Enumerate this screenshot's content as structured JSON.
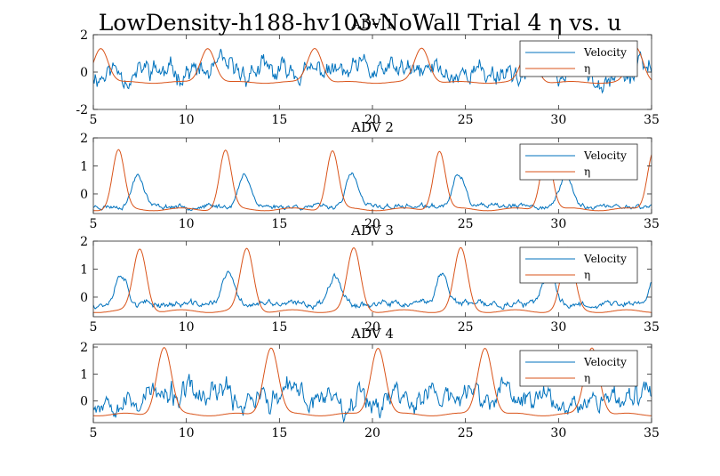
{
  "figure": {
    "title": "LowDensity-h188-hv103-NoWall Trial 4 η vs. u"
  },
  "chart_data": [
    {
      "type": "line",
      "title": "ADV 1",
      "xlim": [
        5,
        35
      ],
      "ylim": [
        -2,
        2
      ],
      "xticks": [
        "5",
        "10",
        "15",
        "20",
        "25",
        "30",
        "35"
      ],
      "yticks": [
        "-2",
        "0",
        "2"
      ],
      "legend": {
        "position": "top-right",
        "entries": [
          "Velocity",
          "η"
        ]
      },
      "series": [
        {
          "name": "Velocity",
          "color": "#0072BD",
          "kind": "noisy",
          "base": 0.0,
          "amp": 0.45,
          "seed": 11,
          "bumps": [],
          "lag_bumps": []
        },
        {
          "name": "η",
          "color": "#D95319",
          "kind": "periodic",
          "base": -0.55,
          "peak": 1.3,
          "period": 5.75,
          "phase": 5.4,
          "width": 0.55,
          "second": 0.0
        }
      ]
    },
    {
      "type": "line",
      "title": "ADV 2",
      "xlim": [
        5,
        35
      ],
      "ylim": [
        -0.7,
        2
      ],
      "xticks": [
        "5",
        "10",
        "15",
        "20",
        "25",
        "30",
        "35"
      ],
      "yticks": [
        "0",
        "1",
        "2"
      ],
      "legend": {
        "position": "top-right",
        "entries": [
          "Velocity",
          "η"
        ]
      },
      "series": [
        {
          "name": "Velocity",
          "color": "#0072BD",
          "kind": "wavebump",
          "base": -0.45,
          "amp": 0.06,
          "seed": 23,
          "bump_height": 1.15,
          "bump_offset": 1.05,
          "bump_width": 0.45
        },
        {
          "name": "η",
          "color": "#D95319",
          "kind": "periodic",
          "base": -0.55,
          "peak": 1.55,
          "period": 5.75,
          "phase": 6.35,
          "width": 0.45,
          "second": 0.0
        }
      ]
    },
    {
      "type": "line",
      "title": "ADV 3",
      "xlim": [
        5,
        35
      ],
      "ylim": [
        -0.7,
        2
      ],
      "xticks": [
        "5",
        "10",
        "15",
        "20",
        "25",
        "30",
        "35"
      ],
      "yticks": [
        "0",
        "1",
        "2"
      ],
      "legend": {
        "position": "top-right",
        "entries": [
          "Velocity",
          "η"
        ]
      },
      "series": [
        {
          "name": "Velocity",
          "color": "#0072BD",
          "kind": "wavebump",
          "base": -0.25,
          "amp": 0.08,
          "seed": 37,
          "bump_height": 1.1,
          "bump_offset": 0.15,
          "bump_width": 0.45
        },
        {
          "name": "η",
          "color": "#D95319",
          "kind": "periodic",
          "base": -0.5,
          "peak": 1.72,
          "period": 5.75,
          "phase": 7.5,
          "width": 0.5,
          "second": 0.0
        }
      ]
    },
    {
      "type": "line",
      "title": "ADV 4",
      "xlim": [
        5,
        35
      ],
      "ylim": [
        -0.8,
        2.1
      ],
      "xticks": [
        "5",
        "10",
        "15",
        "20",
        "25",
        "30",
        "35"
      ],
      "yticks": [
        "0",
        "1",
        "2"
      ],
      "legend": {
        "position": "top-right",
        "entries": [
          "Velocity",
          "η"
        ]
      },
      "series": [
        {
          "name": "Velocity",
          "color": "#0072BD",
          "kind": "noisy",
          "base": 0.15,
          "amp": 0.35,
          "seed": 53,
          "bumps": [],
          "lag_bumps": []
        },
        {
          "name": "η",
          "color": "#D95319",
          "kind": "periodic",
          "base": -0.5,
          "peak": 2.0,
          "period": 5.75,
          "phase": 8.8,
          "width": 0.55,
          "second": 0.0
        }
      ]
    }
  ]
}
